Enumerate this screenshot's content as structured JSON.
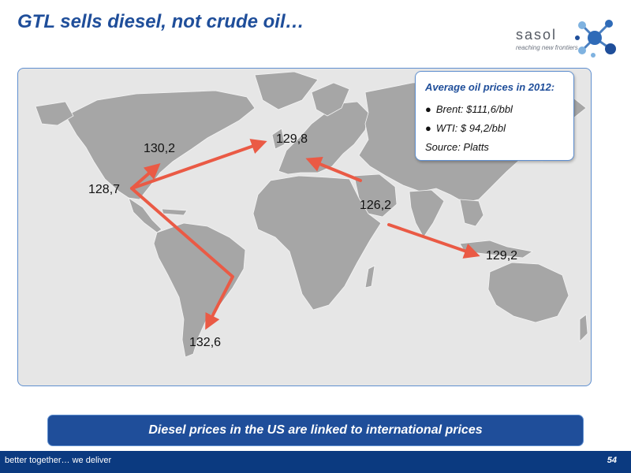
{
  "slide": {
    "title": "GTL sells diesel, not crude oil…",
    "page_number": "54"
  },
  "logo": {
    "wordmark": "sasol",
    "tagline": "reaching new frontiers"
  },
  "info_box": {
    "title": "Average oil prices in 2012:",
    "items": [
      {
        "bullet": "●",
        "text": "Brent: $111,6/bbl"
      },
      {
        "bullet": "●",
        "text": "WTI: $ 94,2/bbl"
      }
    ],
    "source": "Source: Platts"
  },
  "price_labels": [
    {
      "id": "us-east-coast",
      "value": "130,2"
    },
    {
      "id": "us-gulf-coast",
      "value": "128,7"
    },
    {
      "id": "europe-ara",
      "value": "129,8"
    },
    {
      "id": "middle-east",
      "value": "126,2"
    },
    {
      "id": "southeast-asia",
      "value": "129,2"
    },
    {
      "id": "south-america",
      "value": "132,6"
    }
  ],
  "banner": {
    "text": "Diesel prices in the US are linked to international prices"
  },
  "footer": {
    "tagline": "better together… we deliver"
  },
  "colors": {
    "title_blue": "#1f4e9a",
    "arrow_red": "#ea5a45",
    "land_gray": "#a6a6a6",
    "sea_gray": "#e6e6e6",
    "footer_navy": "#0b3a80"
  }
}
